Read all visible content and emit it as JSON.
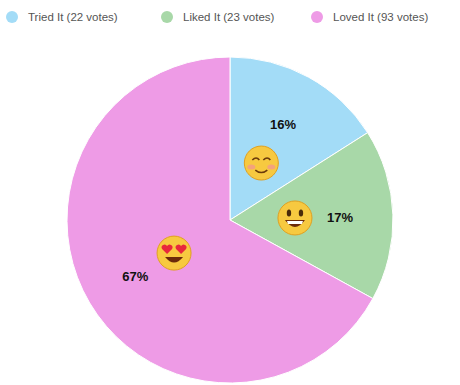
{
  "chart_data": {
    "type": "pie",
    "categories": [
      "Tried It (22 votes)",
      "Liked It (23 votes)",
      "Loved It (93 votes)"
    ],
    "values": [
      16,
      17,
      67
    ],
    "value_labels": [
      "16%",
      "17%",
      "67%"
    ],
    "colors": [
      "#a3dcf7",
      "#a8d8a8",
      "#ee9be6"
    ],
    "data_labels": true,
    "legend": "top"
  }
}
